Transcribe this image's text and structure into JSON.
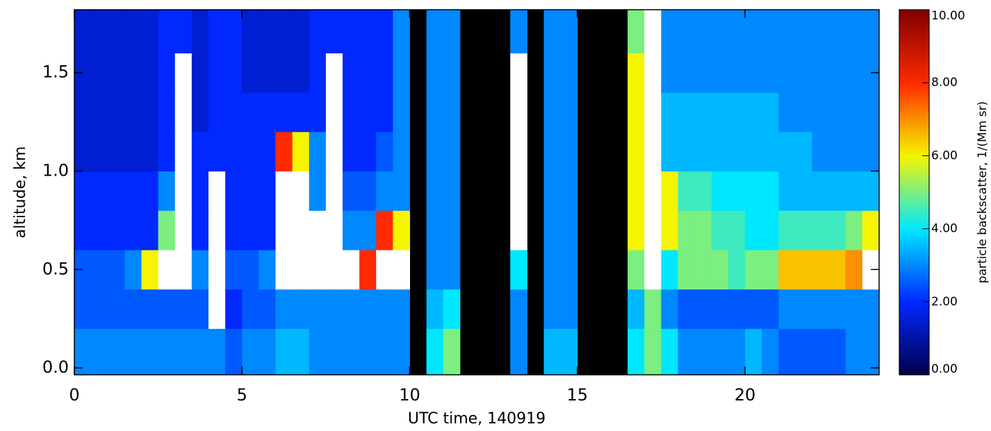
{
  "chart_data": {
    "type": "heatmap",
    "xlabel": "UTC time, 140919",
    "ylabel": "altitude, km",
    "colorbar_label": "particle backscatter, 1/(Mm sr)",
    "xlim": [
      0,
      24
    ],
    "ylim": [
      -0.035,
      1.82
    ],
    "xticks": [
      0,
      5,
      10,
      15,
      20
    ],
    "yticks": [
      {
        "value": 0,
        "label": "0.0"
      },
      {
        "value": 0.5,
        "label": "0.5"
      },
      {
        "value": 1,
        "label": "1.0"
      },
      {
        "value": 1.5,
        "label": "1.5"
      }
    ],
    "clim": [
      0,
      10
    ],
    "cticks": [
      {
        "value": 0,
        "label": "0.00"
      },
      {
        "value": 2,
        "label": "2.00"
      },
      {
        "value": 4,
        "label": "4.00"
      },
      {
        "value": 6,
        "label": "6.00"
      },
      {
        "value": 8,
        "label": "8.00"
      },
      {
        "value": 10,
        "label": "10.00"
      }
    ],
    "colormap": [
      "#00004a",
      "#0028ff",
      "#00e8ff",
      "#f5f500",
      "#ff2a00",
      "#800000"
    ],
    "over_color": "#ffffff",
    "missing_color": "#000000",
    "xbins": [
      0,
      0.5,
      1,
      1.5,
      2,
      2.5,
      3,
      3.5,
      4,
      4.5,
      5,
      5.5,
      6,
      6.5,
      7,
      7.5,
      8,
      8.5,
      9,
      9.5,
      10,
      10.5,
      11,
      11.5,
      12,
      12.5,
      13,
      13.5,
      14,
      14.5,
      15,
      15.5,
      16,
      16.5,
      17,
      17.5,
      18,
      18.5,
      19,
      19.5,
      20,
      20.5,
      21,
      21.5,
      22,
      22.5,
      23,
      23.5,
      24
    ],
    "ybins": [
      -0.035,
      0.2,
      0.4,
      0.6,
      0.8,
      1.0,
      1.2,
      1.4,
      1.6,
      1.82
    ],
    "z": [
      [
        3,
        3,
        3,
        3,
        3,
        3,
        3,
        3,
        3,
        2.5,
        3,
        3,
        3.5,
        3.5,
        3,
        3,
        3,
        3,
        3,
        3,
        null,
        4,
        5,
        null,
        null,
        null,
        3,
        null,
        3.5,
        3.5,
        null,
        null,
        null,
        4,
        5,
        4,
        3,
        3,
        3,
        3,
        3.5,
        3,
        2.5,
        2.5,
        2.5,
        2.5,
        3,
        3
      ],
      [
        2.5,
        2.5,
        2.5,
        2.5,
        2.5,
        2.5,
        2.5,
        2.5,
        12,
        2,
        2.5,
        2.5,
        3,
        3,
        3,
        3,
        3,
        3,
        3,
        3,
        null,
        3.5,
        4,
        null,
        null,
        null,
        3,
        null,
        3,
        3,
        null,
        null,
        null,
        3.5,
        5,
        3,
        2.5,
        2.5,
        2.5,
        2.5,
        2.5,
        2.5,
        3,
        3,
        3,
        3,
        3,
        3
      ],
      [
        2.5,
        2.5,
        2.5,
        3,
        6,
        12,
        12,
        3,
        12,
        2.5,
        2.5,
        3,
        12,
        12,
        12,
        12,
        12,
        8,
        12,
        12,
        null,
        3,
        3,
        null,
        null,
        null,
        4,
        null,
        3,
        3,
        null,
        null,
        null,
        5,
        12,
        4,
        5,
        5,
        5,
        4.5,
        5,
        5,
        6.5,
        6.5,
        6.5,
        6.5,
        7,
        12
      ],
      [
        2,
        2,
        2,
        2,
        2,
        5,
        12,
        2,
        12,
        2,
        2,
        2,
        12,
        12,
        12,
        12,
        3,
        3,
        8,
        6,
        null,
        3,
        3,
        null,
        null,
        null,
        12,
        null,
        3,
        3,
        null,
        null,
        null,
        6,
        12,
        6,
        5,
        5,
        4.5,
        4.5,
        4,
        4,
        4.5,
        4.5,
        4.5,
        4.5,
        5,
        6
      ],
      [
        2,
        2,
        2,
        2,
        2,
        3,
        12,
        2,
        12,
        2,
        2,
        2,
        12,
        12,
        3,
        12,
        2.5,
        2.5,
        3,
        3,
        null,
        3,
        3,
        null,
        null,
        null,
        12,
        null,
        3,
        3,
        null,
        null,
        null,
        6,
        12,
        6,
        4.5,
        4.5,
        4,
        4,
        4,
        4,
        3.5,
        3.5,
        3.5,
        3.5,
        3.5,
        3.5
      ],
      [
        1.5,
        1.5,
        1.5,
        1.5,
        1.5,
        2,
        12,
        2,
        2,
        2,
        2,
        2,
        8,
        6,
        3,
        12,
        2,
        2,
        2.5,
        3,
        null,
        3,
        3,
        null,
        null,
        null,
        12,
        null,
        3,
        3,
        null,
        null,
        null,
        6,
        12,
        3.5,
        3.5,
        3.5,
        3.5,
        3.5,
        3.5,
        3.5,
        3.5,
        3.5,
        3,
        3,
        3,
        3
      ],
      [
        1.5,
        1.5,
        1.5,
        1.5,
        1.5,
        2,
        12,
        1.5,
        2,
        2,
        2,
        2,
        2,
        2,
        2,
        12,
        2,
        2,
        2,
        3,
        null,
        3,
        3,
        null,
        null,
        null,
        12,
        null,
        3,
        3,
        null,
        null,
        null,
        6,
        12,
        3.5,
        3.5,
        3.5,
        3.5,
        3.5,
        3.5,
        3.5,
        3,
        3,
        3,
        3,
        3,
        3
      ],
      [
        1.5,
        1.5,
        1.5,
        1.5,
        1.5,
        2,
        12,
        1.5,
        2,
        2,
        1.5,
        1.5,
        1.5,
        1.5,
        2,
        12,
        2,
        2,
        2,
        3,
        null,
        3,
        3,
        null,
        null,
        null,
        12,
        null,
        3,
        3,
        null,
        null,
        null,
        6,
        12,
        3,
        3,
        3,
        3,
        3,
        3,
        3,
        3,
        3,
        3,
        3,
        3,
        3
      ],
      [
        1.5,
        1.5,
        1.5,
        1.5,
        1.5,
        2,
        2,
        1.5,
        2,
        2,
        1.5,
        1.5,
        1.5,
        1.5,
        2,
        2,
        2,
        2,
        2,
        3,
        null,
        3,
        3,
        null,
        null,
        null,
        3,
        null,
        3,
        3,
        null,
        null,
        null,
        5,
        12,
        3,
        3,
        3,
        3,
        3,
        3,
        3,
        3,
        3,
        3,
        3,
        3,
        3
      ]
    ]
  }
}
